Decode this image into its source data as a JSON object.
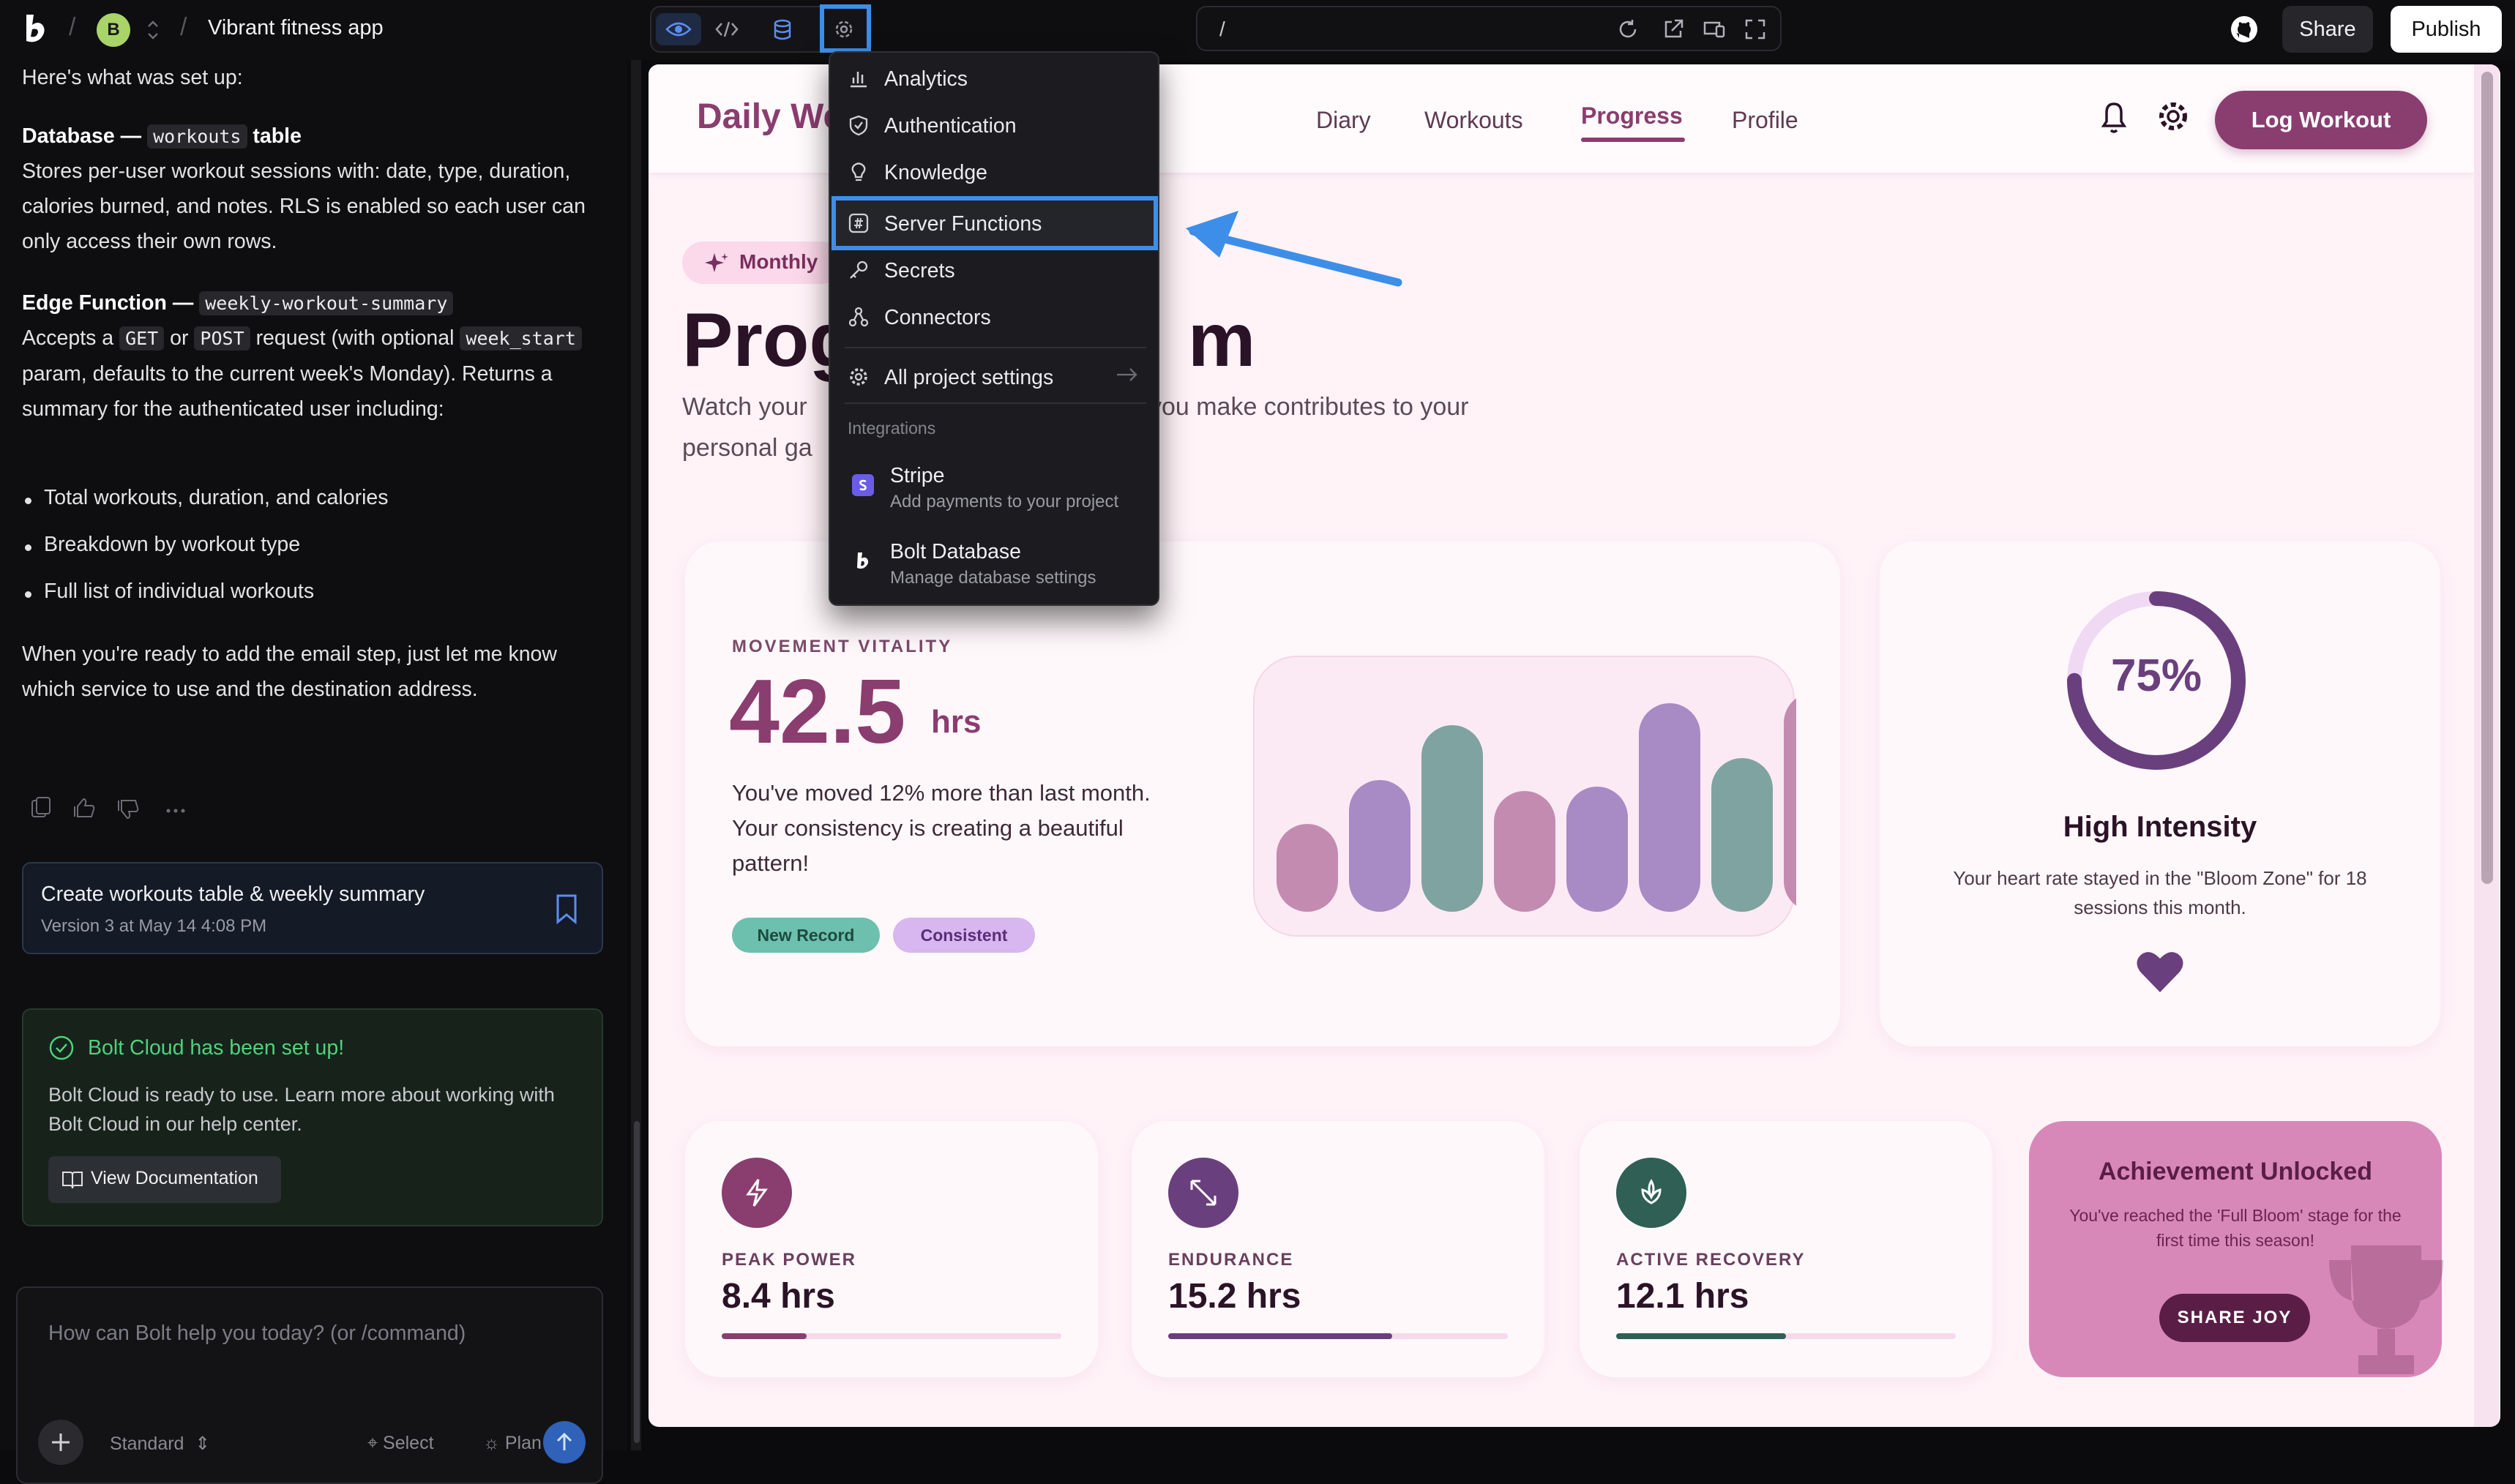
{
  "topbar": {
    "sep": "/",
    "avatar_letter": "B",
    "project_name": "Vibrant fitness app",
    "url": "/",
    "share_label": "Share",
    "publish_label": "Publish",
    "icons": [
      "bolt-logo-icon",
      "preview-eye-icon",
      "code-icon",
      "database-icon",
      "settings-gear-icon",
      "reload-icon",
      "open-external-icon",
      "responsive-icon",
      "fullscreen-icon",
      "github-icon"
    ]
  },
  "chat": {
    "intro": "Here's what was set up:",
    "db_heading": "Database —",
    "db_code": "workouts",
    "db_tail": "table",
    "db_text": "Stores per-user workout sessions with: date, type, duration, calories burned, and notes. RLS is enabled so each user can only access their own rows.",
    "edge_heading": "Edge Function —",
    "edge_code": "weekly-workout-summary",
    "edge_p1": "Accepts a",
    "edge_get": "GET",
    "edge_or": "or",
    "edge_post": "POST",
    "edge_p2": "request (with optional",
    "edge_param": "week_start",
    "edge_p3": "param, defaults to the current week's Monday). Returns a summary for the authenticated user including:",
    "bullets": [
      "Total workouts, duration, and calories",
      "Breakdown by workout type",
      "Full list of individual workouts"
    ],
    "closing": "When you're ready to add the email step, just let me know which service to use and the destination address.",
    "version_title": "Create workouts table & weekly summary",
    "version_sub": "Version 3 at May 14 4:08 PM",
    "cloud_title": "Bolt Cloud has been set up!",
    "cloud_text": "Bolt Cloud is ready to use. Learn more about working with Bolt Cloud in our help center.",
    "cloud_btn": "View Documentation",
    "input_placeholder": "How can Bolt help you today? (or /command)",
    "mode": "Standard",
    "select_label": "Select",
    "plan_label": "Plan"
  },
  "app": {
    "brand": "Daily We",
    "nav": [
      "Diary",
      "Workouts",
      "Progress",
      "Profile"
    ],
    "active_nav": "Progress",
    "log_btn": "Log Workout",
    "badge": "Monthly",
    "hero_title_a": "Prog",
    "hero_title_b": "m",
    "hero_sub_a": "Watch your",
    "hero_sub_b": "ery move you make contributes to your",
    "hero_sub_c": "personal ga",
    "movement": {
      "label": "MOVEMENT VITALITY",
      "value": "42.5",
      "unit": "hrs",
      "desc": "You've moved 12% more than last month. Your consistency is creating a beautiful pattern!",
      "pill_a": "New Record",
      "pill_b": "Consistent"
    },
    "intensity": {
      "percent": "75%",
      "fraction": 0.75,
      "title": "High Intensity",
      "desc": "Your heart rate stayed in the \"Bloom Zone\" for 18 sessions this month."
    },
    "stats": [
      {
        "label": "PEAK POWER",
        "value": "8.4 hrs",
        "fill": 0.25,
        "color": "#8a3d6f",
        "icon": "bolt-icon"
      },
      {
        "label": "ENDURANCE",
        "value": "15.2 hrs",
        "fill": 0.66,
        "color": "#6a3f7e",
        "icon": "expand-arrows-icon"
      },
      {
        "label": "ACTIVE RECOVERY",
        "value": "12.1 hrs",
        "fill": 0.5,
        "color": "#2f5f55",
        "icon": "lotus-icon"
      }
    ],
    "achievement": {
      "title": "Achievement Unlocked",
      "desc": "You've reached the 'Full Bloom' stage for the first time this season!",
      "btn": "SHARE JOY"
    }
  },
  "chart_data": {
    "type": "bar",
    "categories": [
      "",
      "",
      "",
      "",
      "",
      "",
      "",
      ""
    ],
    "values": [
      0.4,
      0.6,
      0.85,
      0.55,
      0.57,
      0.95,
      0.7,
      1.0
    ],
    "colors": [
      "#c48bb0",
      "#a88ac4",
      "#7fa3a0",
      "#c48bb0",
      "#a88ac4",
      "#a88ac4",
      "#7fa3a0",
      "#c48bb0"
    ],
    "xlabel": "",
    "ylabel": ""
  },
  "menu": {
    "items": [
      {
        "label": "Analytics",
        "icon": "analytics-chart-icon"
      },
      {
        "label": "Authentication",
        "icon": "shield-icon"
      },
      {
        "label": "Knowledge",
        "icon": "lightbulb-icon"
      },
      {
        "label": "Server Functions",
        "icon": "function-icon"
      },
      {
        "label": "Secrets",
        "icon": "key-icon"
      },
      {
        "label": "Connectors",
        "icon": "connectors-icon"
      }
    ],
    "all_settings": "All project settings",
    "integrations_label": "Integrations",
    "stripe_title": "Stripe",
    "stripe_sub": "Add payments to your project",
    "boltdb_title": "Bolt Database",
    "boltdb_sub": "Manage database settings"
  }
}
